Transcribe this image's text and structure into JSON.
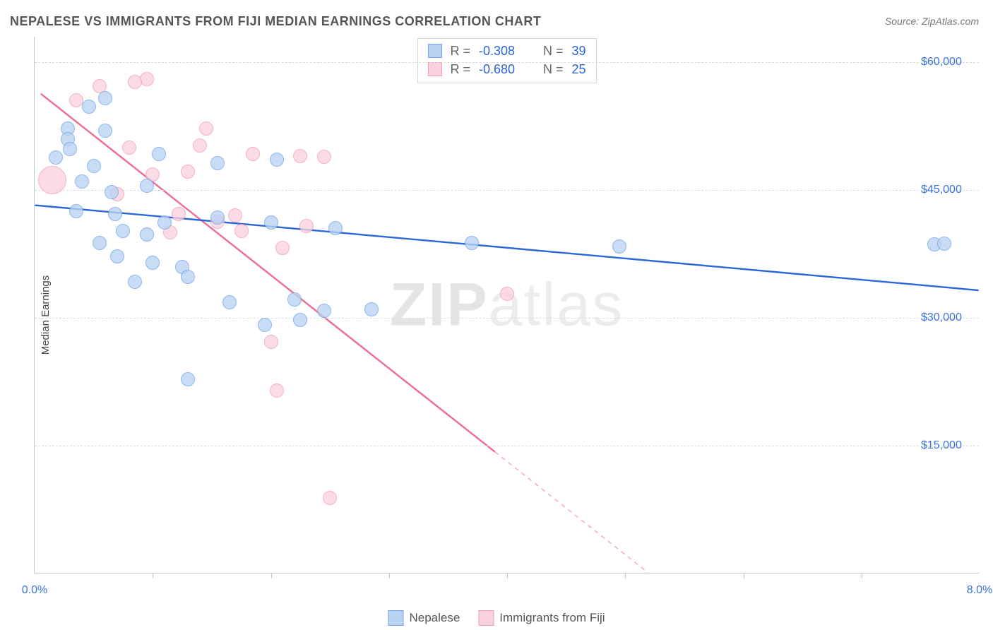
{
  "title": "NEPALESE VS IMMIGRANTS FROM FIJI MEDIAN EARNINGS CORRELATION CHART",
  "source_prefix": "Source: ",
  "source_name": "ZipAtlas.com",
  "ylabel": "Median Earnings",
  "watermark_a": "ZIP",
  "watermark_b": "atlas",
  "chart": {
    "type": "scatter",
    "xlim": [
      0,
      8
    ],
    "ylim": [
      0,
      63000
    ],
    "background_color": "#ffffff",
    "grid_color": "#d8dde3",
    "axis_color": "#bfc7d0",
    "tick_label_color": "#3b72d8",
    "y_ticks": [
      {
        "v": 15000,
        "label": "$15,000"
      },
      {
        "v": 30000,
        "label": "$30,000"
      },
      {
        "v": 45000,
        "label": "$45,000"
      },
      {
        "v": 60000,
        "label": "$60,000"
      }
    ],
    "x_ticks_minor": [
      1,
      2,
      3,
      4,
      5,
      6,
      7
    ],
    "x_tick_labels": [
      {
        "v": 0,
        "label": "0.0%"
      },
      {
        "v": 8,
        "label": "8.0%"
      }
    ],
    "series": {
      "blue": {
        "label": "Nepalese",
        "fill": "#b9d3f3",
        "stroke": "#6fa3e8",
        "line": "#2b66d6",
        "R_label": "R = ",
        "R": "-0.308",
        "N_label": "N = ",
        "N": "39",
        "trend": {
          "x1": 0,
          "y1": 43200,
          "x2": 8,
          "y2": 33200,
          "dash_after_x": 8
        },
        "marker_r": 10,
        "points": [
          {
            "x": 0.28,
            "y": 52200
          },
          {
            "x": 0.28,
            "y": 51000
          },
          {
            "x": 0.3,
            "y": 49800
          },
          {
            "x": 0.18,
            "y": 48800
          },
          {
            "x": 0.5,
            "y": 47800
          },
          {
            "x": 0.46,
            "y": 54800
          },
          {
            "x": 0.6,
            "y": 52000
          },
          {
            "x": 0.4,
            "y": 46000
          },
          {
            "x": 0.65,
            "y": 44800
          },
          {
            "x": 0.35,
            "y": 42500
          },
          {
            "x": 0.68,
            "y": 42200
          },
          {
            "x": 0.95,
            "y": 45500
          },
          {
            "x": 1.05,
            "y": 49200
          },
          {
            "x": 1.1,
            "y": 41200
          },
          {
            "x": 0.75,
            "y": 40200
          },
          {
            "x": 0.55,
            "y": 38800
          },
          {
            "x": 0.7,
            "y": 37200
          },
          {
            "x": 0.95,
            "y": 39800
          },
          {
            "x": 1.25,
            "y": 36000
          },
          {
            "x": 1.3,
            "y": 22800
          },
          {
            "x": 1.55,
            "y": 41800
          },
          {
            "x": 1.3,
            "y": 34800
          },
          {
            "x": 1.55,
            "y": 48200
          },
          {
            "x": 2.0,
            "y": 41200
          },
          {
            "x": 2.05,
            "y": 48600
          },
          {
            "x": 1.65,
            "y": 31800
          },
          {
            "x": 1.95,
            "y": 29200
          },
          {
            "x": 2.25,
            "y": 29800
          },
          {
            "x": 2.2,
            "y": 32200
          },
          {
            "x": 2.55,
            "y": 40500
          },
          {
            "x": 2.45,
            "y": 30800
          },
          {
            "x": 1.0,
            "y": 36500
          },
          {
            "x": 3.7,
            "y": 38800
          },
          {
            "x": 0.85,
            "y": 34200
          },
          {
            "x": 4.95,
            "y": 38400
          },
          {
            "x": 2.85,
            "y": 31000
          },
          {
            "x": 7.62,
            "y": 38600
          },
          {
            "x": 7.7,
            "y": 38700
          },
          {
            "x": 0.6,
            "y": 55800
          }
        ]
      },
      "pink": {
        "label": "Immigrants from Fiji",
        "fill": "#fbd1dd",
        "stroke": "#f29db5",
        "line": "#ef6b8f",
        "R_label": "R = ",
        "R": "-0.680",
        "N_label": "N = ",
        "N": "25",
        "trend": {
          "x1": 0.05,
          "y1": 56300,
          "x2": 5.2,
          "y2": 0,
          "dash_after_x": 3.9
        },
        "marker_r": 10,
        "points": [
          {
            "x": 0.15,
            "y": 46200,
            "r": 20
          },
          {
            "x": 0.35,
            "y": 55500
          },
          {
            "x": 0.55,
            "y": 57200
          },
          {
            "x": 0.95,
            "y": 58000
          },
          {
            "x": 0.85,
            "y": 57700
          },
          {
            "x": 0.8,
            "y": 50000
          },
          {
            "x": 1.0,
            "y": 46800
          },
          {
            "x": 1.22,
            "y": 42200
          },
          {
            "x": 1.4,
            "y": 50200
          },
          {
            "x": 1.45,
            "y": 52200
          },
          {
            "x": 1.55,
            "y": 41300
          },
          {
            "x": 1.15,
            "y": 40000
          },
          {
            "x": 1.7,
            "y": 42000
          },
          {
            "x": 1.75,
            "y": 40200
          },
          {
            "x": 1.85,
            "y": 49200
          },
          {
            "x": 2.0,
            "y": 27200
          },
          {
            "x": 2.1,
            "y": 38200
          },
          {
            "x": 2.25,
            "y": 49000
          },
          {
            "x": 2.05,
            "y": 21500
          },
          {
            "x": 2.3,
            "y": 40800
          },
          {
            "x": 2.5,
            "y": 8900
          },
          {
            "x": 2.45,
            "y": 48900
          },
          {
            "x": 4.0,
            "y": 32800
          },
          {
            "x": 0.7,
            "y": 44500
          },
          {
            "x": 1.3,
            "y": 47200
          }
        ]
      }
    }
  },
  "legend": {
    "blue_label": "Nepalese",
    "pink_label": "Immigrants from Fiji"
  }
}
